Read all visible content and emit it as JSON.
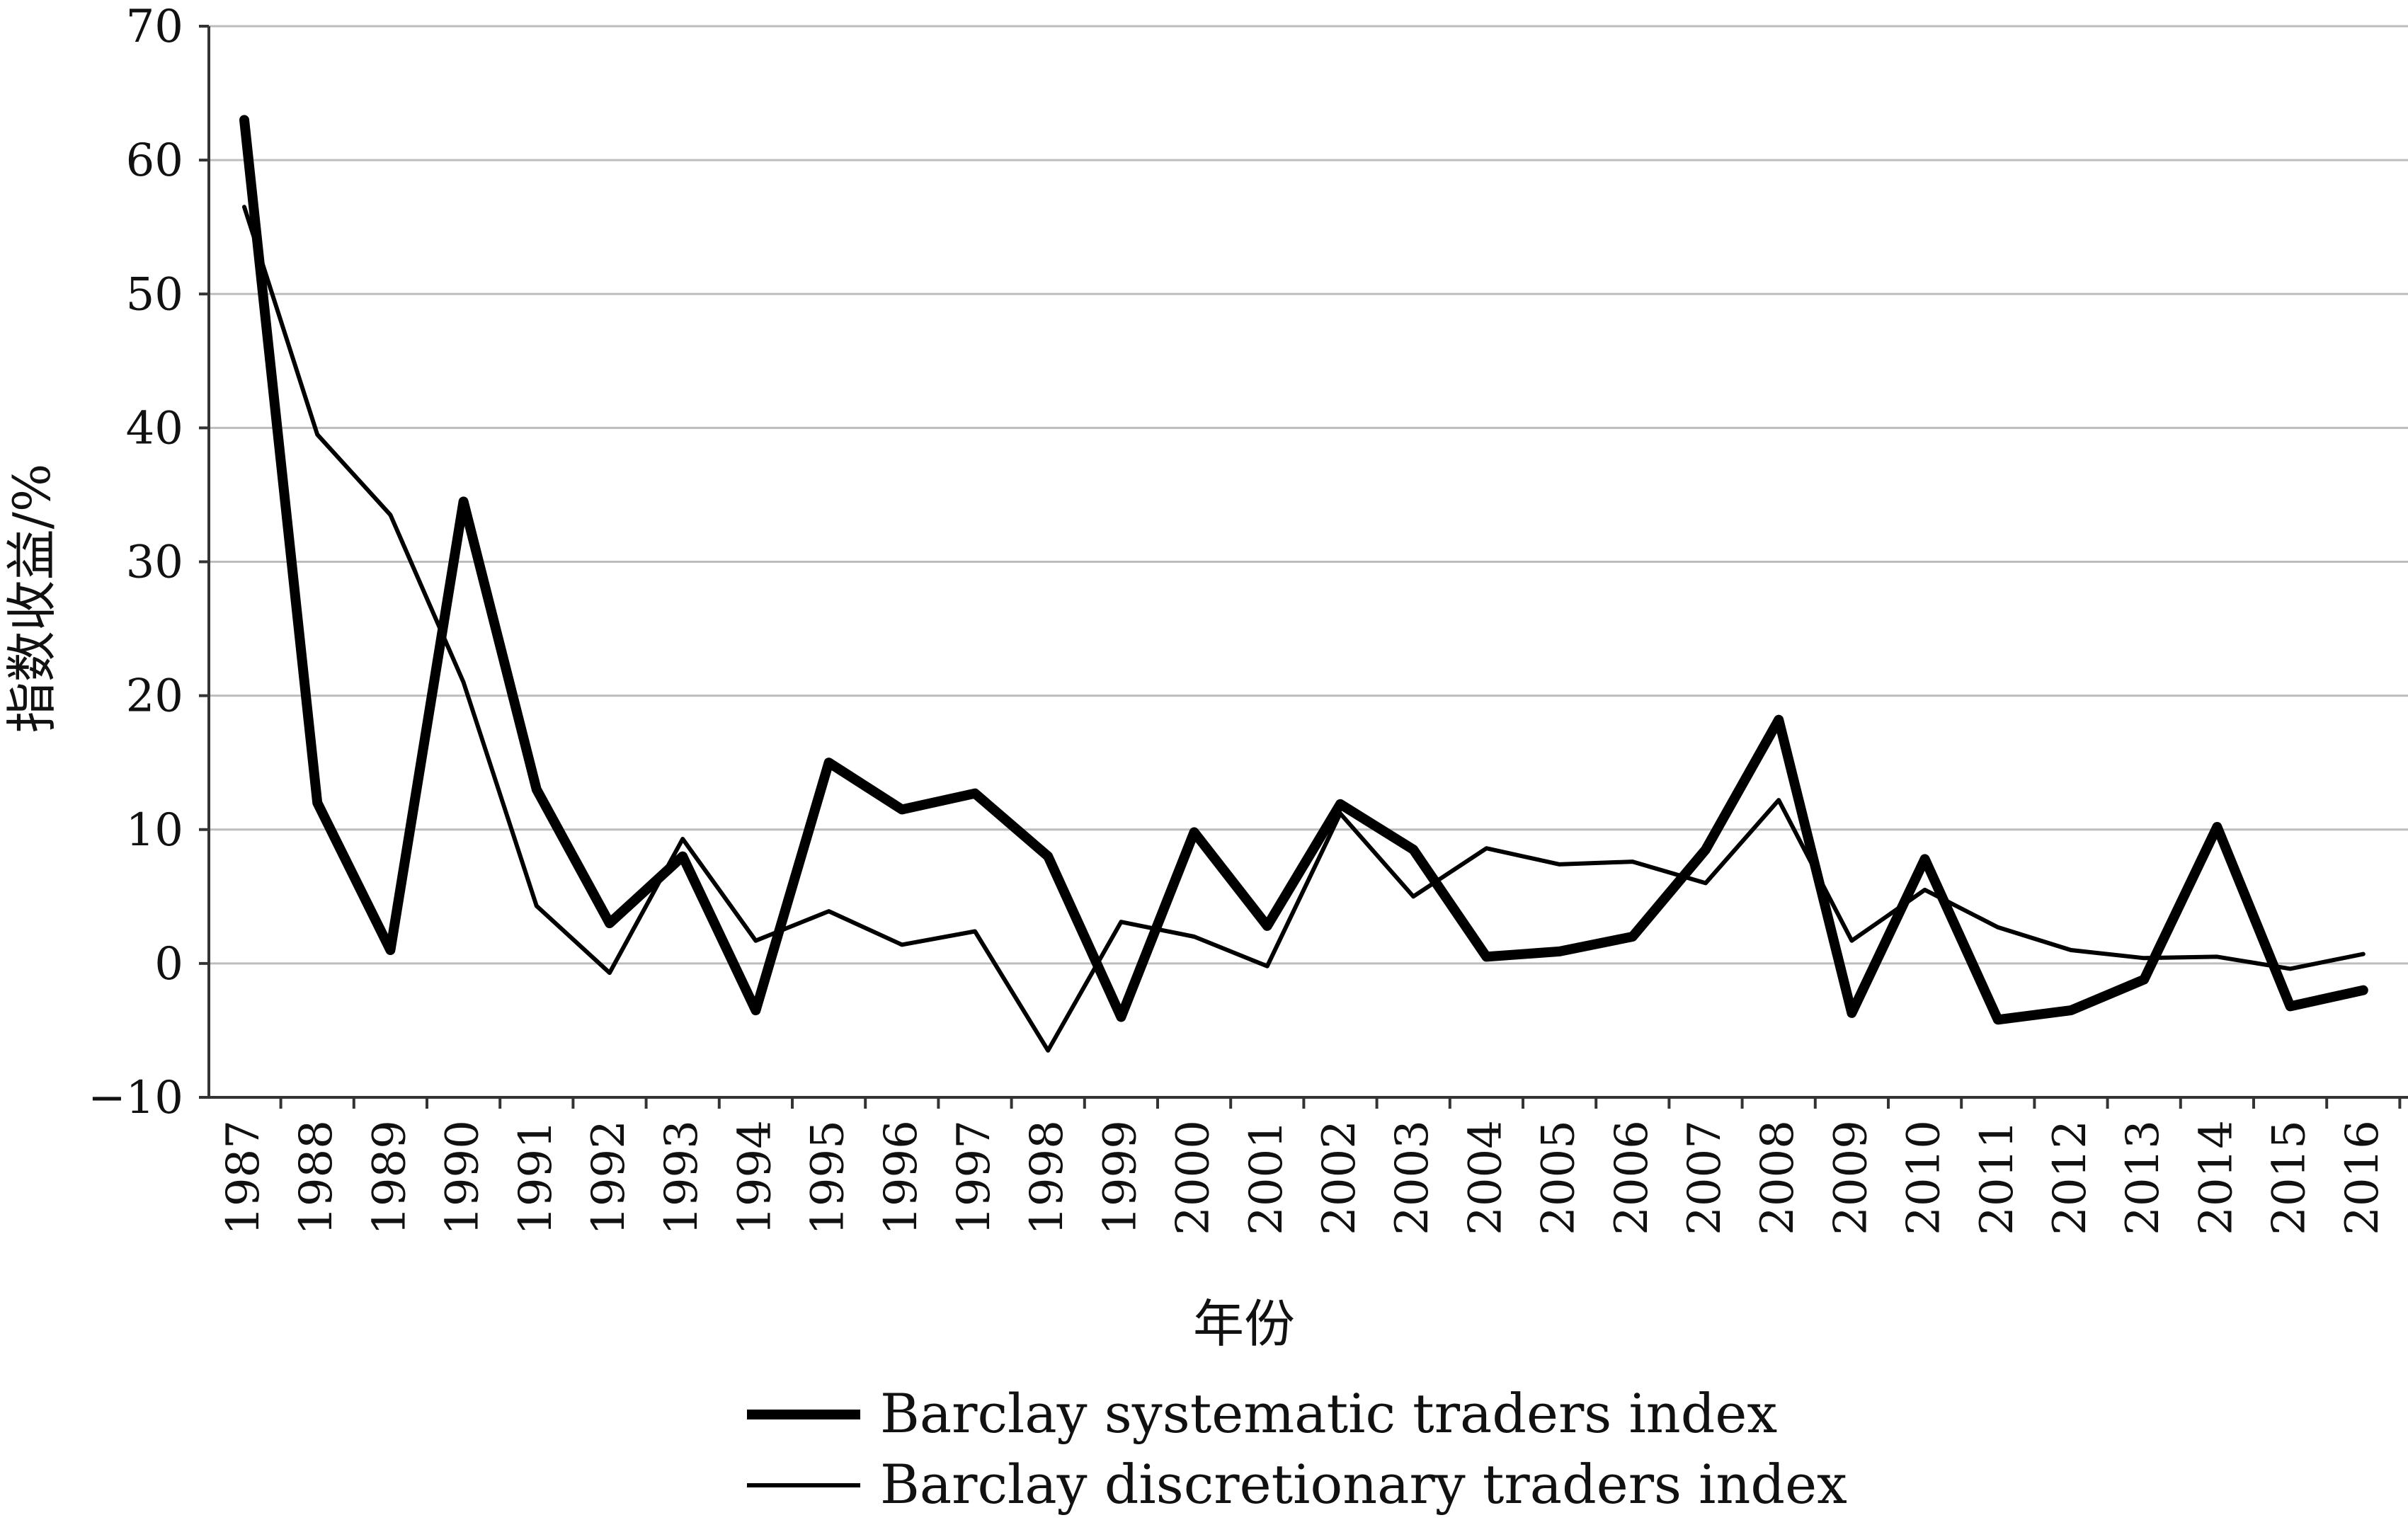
{
  "chart_data": {
    "type": "line",
    "title": "",
    "xlabel": "年份",
    "ylabel": "指数收益/%",
    "ylim": [
      -10,
      70
    ],
    "yticks": [
      -10,
      0,
      10,
      20,
      30,
      40,
      50,
      60,
      70
    ],
    "ytick_labels": [
      "−10",
      "0",
      "10",
      "20",
      "30",
      "40",
      "50",
      "60",
      "70"
    ],
    "categories": [
      "1987",
      "1988",
      "1989",
      "1990",
      "1991",
      "1992",
      "1993",
      "1994",
      "1995",
      "1996",
      "1997",
      "1998",
      "1999",
      "2000",
      "2001",
      "2002",
      "2003",
      "2004",
      "2005",
      "2006",
      "2007",
      "2008",
      "2009",
      "2010",
      "2011",
      "2012",
      "2013",
      "2014",
      "2015",
      "2016"
    ],
    "grid": true,
    "legend_position": "bottom",
    "series": [
      {
        "name": "Barclay systematic traders index",
        "style": "thick",
        "color": "#000000",
        "values": [
          63,
          12,
          1,
          34.5,
          13,
          3,
          8,
          -3.5,
          15,
          11.5,
          12.7,
          8,
          -4,
          9.8,
          2.8,
          11.9,
          8.5,
          0.5,
          0.9,
          2,
          8.5,
          18.2,
          -3.7,
          7.8,
          -4.2,
          -3.5,
          -1.2,
          10.2,
          -3.2,
          -2
        ]
      },
      {
        "name": "Barclay discretionary traders index",
        "style": "thin",
        "color": "#000000",
        "values": [
          56.5,
          39.5,
          33.5,
          21,
          4.3,
          -0.7,
          9.3,
          1.7,
          3.9,
          1.4,
          2.4,
          -6.5,
          3.1,
          2,
          -0.2,
          11.2,
          5,
          8.6,
          7.4,
          7.6,
          6,
          12.2,
          1.7,
          5.5,
          2.7,
          1,
          0.4,
          0.5,
          -0.4,
          0.7
        ]
      }
    ]
  }
}
